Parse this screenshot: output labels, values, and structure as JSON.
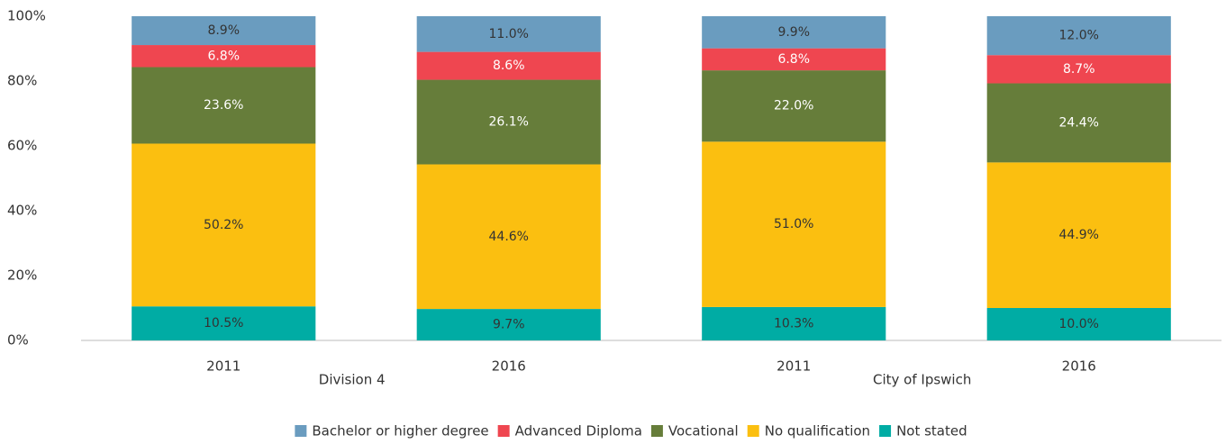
{
  "chart_data": {
    "type": "stacked_bar",
    "categories": [
      "2011",
      "2016",
      "2011",
      "2016"
    ],
    "group_labels": [
      "Division 4",
      "City of Ipswich"
    ],
    "series": [
      {
        "name": "Not stated",
        "color": "#00aca4",
        "label_color": "#333333",
        "values": [
          10.5,
          9.7,
          10.3,
          10.0
        ],
        "value_labels": [
          "10.5%",
          "9.7%",
          "10.3%",
          "10.0%"
        ]
      },
      {
        "name": "No qualification",
        "color": "#fbbf10",
        "label_color": "#333333",
        "values": [
          50.2,
          44.6,
          51.0,
          44.9
        ],
        "value_labels": [
          "50.2%",
          "44.6%",
          "51.0%",
          "44.9%"
        ]
      },
      {
        "name": "Vocational",
        "color": "#667d3a",
        "label_color": "#ffffff",
        "values": [
          23.6,
          26.1,
          22.0,
          24.4
        ],
        "value_labels": [
          "23.6%",
          "26.1%",
          "22.0%",
          "24.4%"
        ]
      },
      {
        "name": "Advanced Diploma",
        "color": "#ef4650",
        "label_color": "#ffffff",
        "values": [
          6.8,
          8.6,
          6.8,
          8.7
        ],
        "value_labels": [
          "6.8%",
          "8.6%",
          "6.8%",
          "8.7%"
        ]
      },
      {
        "name": "Bachelor or higher degree",
        "color": "#6a9cbf",
        "label_color": "#333333",
        "values": [
          8.9,
          11.0,
          9.9,
          12.0
        ],
        "value_labels": [
          "8.9%",
          "11.0%",
          "9.9%",
          "12.0%"
        ]
      }
    ],
    "legend_order": [
      4,
      3,
      2,
      1,
      0
    ],
    "ylim": [
      0,
      100
    ],
    "yticks": [
      {
        "value": 0,
        "label": "0%"
      },
      {
        "value": 20,
        "label": "20%"
      },
      {
        "value": 40,
        "label": "40%"
      },
      {
        "value": 60,
        "label": "60%"
      },
      {
        "value": 80,
        "label": "80%"
      },
      {
        "value": 100,
        "label": "100%"
      }
    ],
    "grid": false,
    "legend": "bottom"
  }
}
